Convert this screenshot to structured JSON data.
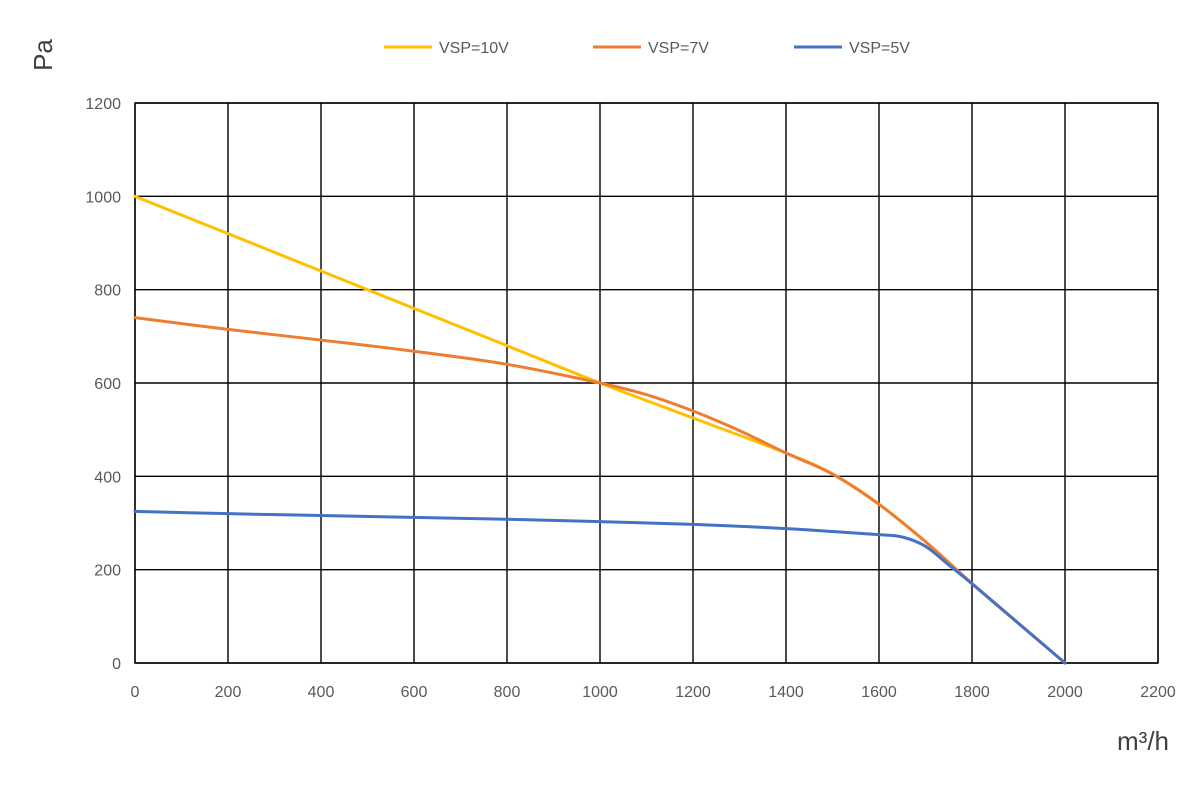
{
  "chart_data": {
    "type": "line",
    "title": "",
    "xlabel": "m³/h",
    "ylabel": "Pa",
    "xlim": [
      0,
      2200
    ],
    "ylim": [
      0,
      1200
    ],
    "xticks": [
      0,
      200,
      400,
      600,
      800,
      1000,
      1200,
      1400,
      1600,
      1800,
      2000,
      2200
    ],
    "yticks": [
      0,
      200,
      400,
      600,
      800,
      1000,
      1200
    ],
    "grid": true,
    "legend_position": "top-center",
    "series": [
      {
        "name": "VSP=10V",
        "color": "#FFC000",
        "x": [
          0,
          200,
          400,
          600,
          800,
          1000,
          1200,
          1400,
          1500,
          1600,
          1700,
          1800,
          1900,
          2000
        ],
        "y": [
          1000,
          920,
          840,
          760,
          680,
          600,
          525,
          450,
          405,
          340,
          260,
          170,
          85,
          0
        ]
      },
      {
        "name": "VSP=7V",
        "color": "#ED7D31",
        "x": [
          0,
          200,
          400,
          600,
          800,
          1000,
          1100,
          1200,
          1300,
          1400,
          1500,
          1600,
          1700,
          1800,
          1900,
          2000
        ],
        "y": [
          740,
          715,
          692,
          668,
          640,
          600,
          575,
          540,
          498,
          450,
          405,
          340,
          260,
          170,
          85,
          0
        ]
      },
      {
        "name": "VSP=5V",
        "color": "#4472C4",
        "x": [
          0,
          200,
          400,
          600,
          800,
          1000,
          1200,
          1400,
          1600,
          1650,
          1700,
          1750,
          1800,
          1900,
          2000
        ],
        "y": [
          325,
          320,
          316,
          312,
          308,
          303,
          297,
          288,
          275,
          270,
          250,
          210,
          170,
          85,
          0
        ]
      }
    ]
  }
}
